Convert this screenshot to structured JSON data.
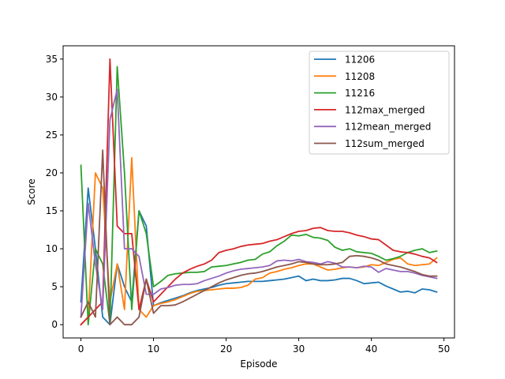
{
  "chart_data": {
    "type": "line",
    "xlabel": "Episode",
    "ylabel": "Score",
    "xlim": [
      -2.45,
      51.45
    ],
    "ylim": [
      -1.75,
      36.75
    ],
    "xticks": [
      0,
      10,
      20,
      30,
      40,
      50
    ],
    "yticks": [
      0,
      5,
      10,
      15,
      20,
      25,
      30,
      35
    ],
    "legend_position": "top-right",
    "series": [
      {
        "name": "11206",
        "color": "#1f77b4",
        "values": [
          3,
          18,
          10,
          1,
          0,
          8,
          5,
          3,
          15,
          13,
          2.5,
          2.9,
          3.2,
          3.5,
          3.8,
          4.2,
          4.5,
          4.7,
          4.9,
          5.2,
          5.4,
          5.5,
          5.6,
          5.7,
          5.7,
          5.7,
          5.8,
          5.9,
          6.0,
          6.2,
          6.4,
          5.8,
          6.0,
          5.8,
          5.8,
          5.9,
          6.1,
          6.1,
          5.8,
          5.4,
          5.5,
          5.6,
          5.1,
          4.7,
          4.3,
          4.4,
          4.2,
          4.7,
          4.6,
          4.3
        ]
      },
      {
        "name": "11208",
        "color": "#ff7f0e",
        "values": [
          0,
          1,
          20,
          18,
          3,
          8,
          2,
          22,
          2,
          1,
          2.5,
          2.8,
          3.0,
          3.3,
          3.7,
          4.1,
          4.4,
          4.5,
          4.6,
          4.7,
          4.8,
          4.8,
          4.9,
          5.2,
          6.0,
          6.2,
          6.8,
          7.0,
          7.3,
          7.5,
          7.8,
          8.0,
          8.0,
          7.6,
          7.2,
          7.3,
          7.5,
          7.6,
          7.5,
          7.6,
          7.9,
          7.8,
          8.2,
          8.6,
          8.8,
          8.0,
          7.8,
          7.9,
          8.0,
          8.8
        ]
      },
      {
        "name": "11216",
        "color": "#2ca02c",
        "values": [
          21,
          0,
          10,
          8,
          0,
          34,
          20,
          2,
          15,
          12,
          5.0,
          5.7,
          6.5,
          6.7,
          6.8,
          6.9,
          6.9,
          7.0,
          7.6,
          7.7,
          7.8,
          8.0,
          8.2,
          8.5,
          8.6,
          9.3,
          9.6,
          10.4,
          11.0,
          11.8,
          11.7,
          11.9,
          11.5,
          11.4,
          11.1,
          10.2,
          9.8,
          10.0,
          9.6,
          9.5,
          9.4,
          9.0,
          8.5,
          8.7,
          9.0,
          9.5,
          9.8,
          10.0,
          9.5,
          9.7
        ]
      },
      {
        "name": "112max_merged",
        "color": "#d62728",
        "values": [
          0,
          1,
          2,
          3,
          35,
          13,
          12,
          12,
          2,
          6,
          3.0,
          4.0,
          5.0,
          6.0,
          6.8,
          7.3,
          7.7,
          8.0,
          8.5,
          9.5,
          9.8,
          10.0,
          10.3,
          10.5,
          10.6,
          10.7,
          11.0,
          11.2,
          11.6,
          12.0,
          12.3,
          12.4,
          12.7,
          12.8,
          12.4,
          12.3,
          12.3,
          12.1,
          11.8,
          11.6,
          11.3,
          11.2,
          10.5,
          9.8,
          9.6,
          9.5,
          9.3,
          9.0,
          8.8,
          8.2
        ]
      },
      {
        "name": "112mean_merged",
        "color": "#9467bd",
        "values": [
          1,
          16,
          8,
          2,
          27,
          31,
          10,
          10,
          9,
          4,
          4.0,
          4.7,
          4.9,
          5.2,
          5.3,
          5.3,
          5.4,
          5.8,
          6.1,
          6.4,
          6.8,
          7.1,
          7.3,
          7.4,
          7.5,
          7.6,
          7.8,
          8.4,
          8.5,
          8.4,
          8.6,
          8.3,
          8.2,
          8.0,
          8.3,
          8.1,
          7.6,
          7.6,
          7.5,
          7.7,
          7.6,
          6.9,
          7.4,
          7.2,
          7.0,
          7.0,
          6.8,
          6.5,
          6.3,
          6.1
        ]
      },
      {
        "name": "112sum_merged",
        "color": "#8c564b",
        "values": [
          1,
          3,
          1,
          23,
          0,
          1,
          0,
          0,
          1,
          6,
          1.5,
          2.5,
          2.5,
          2.6,
          3.0,
          3.5,
          4.0,
          4.5,
          5.0,
          5.5,
          5.9,
          6.2,
          6.5,
          6.7,
          6.8,
          7.0,
          7.3,
          7.6,
          7.8,
          8.0,
          8.3,
          8.2,
          8.0,
          7.9,
          7.9,
          8.0,
          8.2,
          9.0,
          9.1,
          9.0,
          8.8,
          8.5,
          8.0,
          7.8,
          7.6,
          7.3,
          7.0,
          6.6,
          6.4,
          6.4
        ]
      }
    ]
  }
}
